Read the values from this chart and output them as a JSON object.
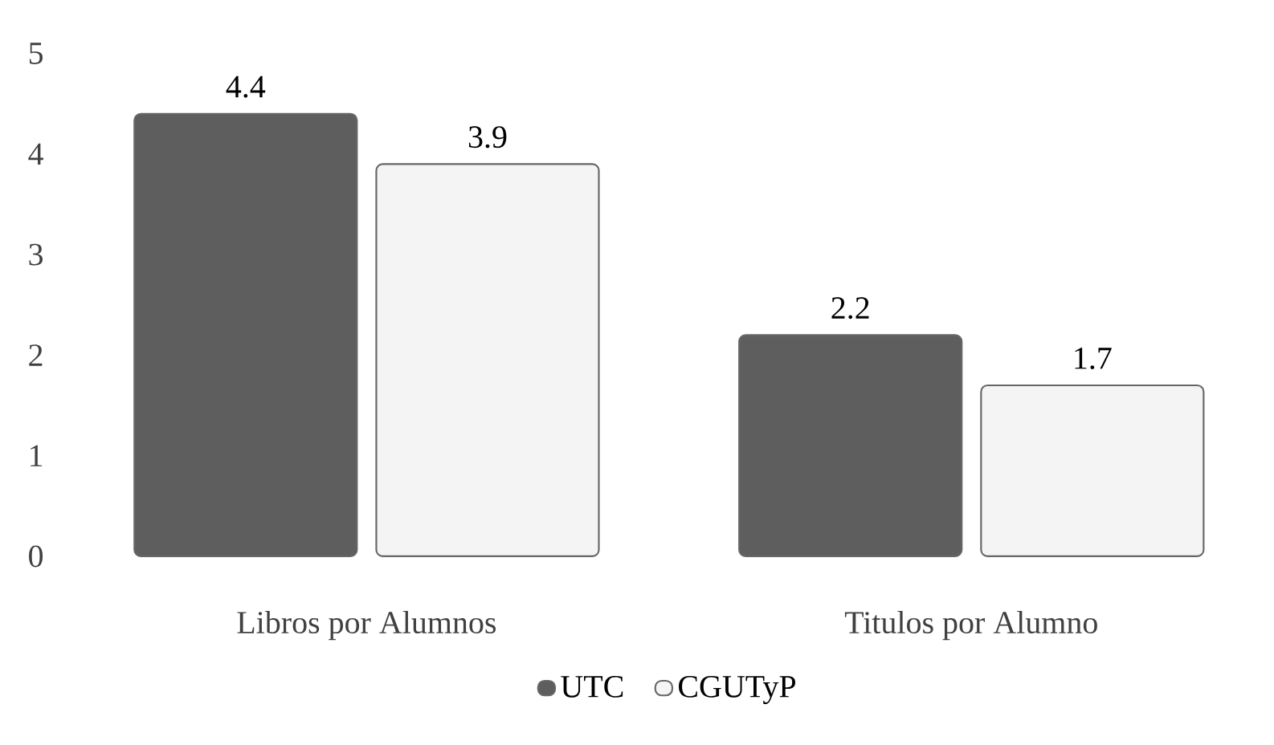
{
  "chart_data": {
    "type": "bar",
    "categories": [
      "Libros por Alumnos",
      "Titulos por Alumno"
    ],
    "series": [
      {
        "name": "UTC",
        "color": "#5e5e5e",
        "values": [
          4.4,
          2.2
        ]
      },
      {
        "name": "CGUTyP",
        "color": "#f4f4f4",
        "values": [
          3.9,
          1.7
        ]
      }
    ],
    "ylim": [
      0,
      5
    ],
    "yticks": [
      0,
      1,
      2,
      3,
      4,
      5
    ],
    "grid": false,
    "legend": "bottom",
    "data_labels": true
  }
}
